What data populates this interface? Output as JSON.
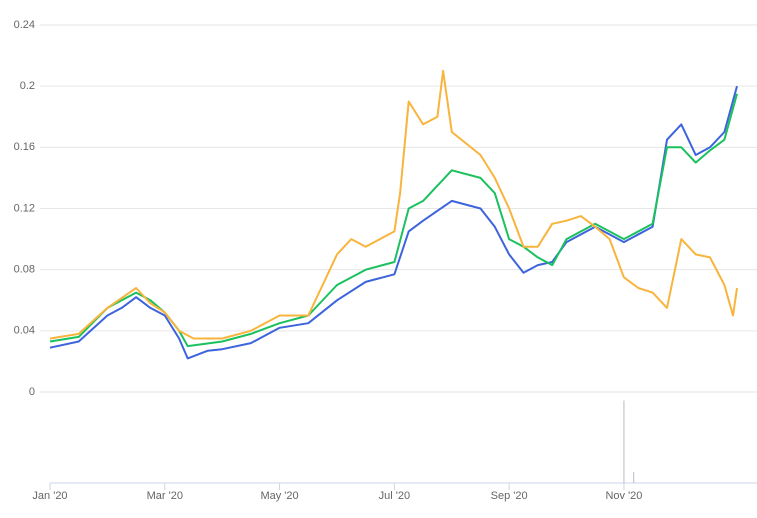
{
  "chart_data": [
    {
      "type": "line",
      "xlim": [
        0,
        11.97
      ],
      "xticks": [
        {
          "value": 0,
          "label": "Jan '20"
        },
        {
          "value": 2,
          "label": "Mar '20"
        },
        {
          "value": 4,
          "label": "May '20"
        },
        {
          "value": 6,
          "label": "Jul '20"
        },
        {
          "value": 8,
          "label": "Sep '20"
        },
        {
          "value": 10,
          "label": "Nov '20"
        }
      ],
      "ylim": [
        0,
        0.24
      ],
      "yticks": [
        0,
        0.04,
        0.08,
        0.12,
        0.16,
        0.2,
        0.24
      ],
      "grid": true,
      "series": [
        {
          "color": "#3d63dd",
          "x": [
            0,
            0.5,
            1,
            1.25,
            1.5,
            1.75,
            2,
            2.25,
            2.4,
            2.75,
            3,
            3.5,
            4,
            4.5,
            5,
            5.5,
            6,
            6.25,
            6.5,
            7,
            7.5,
            7.75,
            8,
            8.25,
            8.5,
            8.75,
            9,
            9.5,
            10,
            10.5,
            10.75,
            11,
            11.25,
            11.5,
            11.75,
            11.97
          ],
          "values": [
            0.029,
            0.033,
            0.05,
            0.055,
            0.062,
            0.055,
            0.05,
            0.035,
            0.022,
            0.027,
            0.028,
            0.032,
            0.042,
            0.045,
            0.06,
            0.072,
            0.077,
            0.105,
            0.112,
            0.125,
            0.12,
            0.108,
            0.09,
            0.078,
            0.083,
            0.085,
            0.098,
            0.108,
            0.098,
            0.108,
            0.165,
            0.175,
            0.155,
            0.16,
            0.17,
            0.2
          ]
        },
        {
          "color": "#1bc15e",
          "x": [
            0,
            0.5,
            1,
            1.5,
            1.75,
            2,
            2.25,
            2.4,
            3,
            3.5,
            4,
            4.5,
            5,
            5.5,
            6,
            6.25,
            6.5,
            7,
            7.5,
            7.75,
            8,
            8.25,
            8.5,
            8.75,
            9,
            9.5,
            10,
            10.5,
            10.75,
            11,
            11.25,
            11.5,
            11.75,
            11.97
          ],
          "values": [
            0.033,
            0.036,
            0.055,
            0.065,
            0.06,
            0.052,
            0.04,
            0.03,
            0.033,
            0.038,
            0.045,
            0.05,
            0.07,
            0.08,
            0.085,
            0.12,
            0.125,
            0.145,
            0.14,
            0.13,
            0.1,
            0.095,
            0.088,
            0.083,
            0.1,
            0.11,
            0.1,
            0.11,
            0.16,
            0.16,
            0.15,
            0.158,
            0.165,
            0.195
          ]
        },
        {
          "color": "#f8b43c",
          "x": [
            0,
            0.5,
            1,
            1.5,
            1.75,
            2,
            2.25,
            2.5,
            3,
            3.5,
            4,
            4.5,
            5,
            5.25,
            5.5,
            6,
            6.1,
            6.25,
            6.5,
            6.75,
            6.85,
            7,
            7.5,
            7.75,
            8,
            8.25,
            8.5,
            8.75,
            9,
            9.25,
            9.5,
            9.75,
            10,
            10.25,
            10.5,
            10.75,
            11,
            11.25,
            11.5,
            11.75,
            11.9,
            11.97
          ],
          "values": [
            0.035,
            0.038,
            0.055,
            0.068,
            0.058,
            0.052,
            0.04,
            0.035,
            0.035,
            0.04,
            0.05,
            0.05,
            0.09,
            0.1,
            0.095,
            0.105,
            0.13,
            0.19,
            0.175,
            0.18,
            0.21,
            0.17,
            0.155,
            0.14,
            0.12,
            0.095,
            0.095,
            0.11,
            0.112,
            0.115,
            0.108,
            0.1,
            0.075,
            0.068,
            0.065,
            0.055,
            0.1,
            0.09,
            0.088,
            0.07,
            0.05,
            0.068
          ]
        }
      ]
    },
    {
      "type": "bar",
      "xlim": [
        0,
        11.97
      ],
      "ylim": [
        0,
        1
      ],
      "x": [
        10,
        10.17
      ],
      "values": [
        0.97,
        0.13
      ],
      "color": "#b8bcc8"
    }
  ]
}
